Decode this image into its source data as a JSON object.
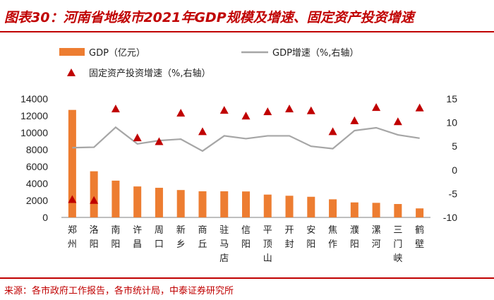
{
  "title": "图表30：河南省地级市2021年GDP规模及增速、固定资产投资增速",
  "source": "来源：各市政府工作报告，各市统计局，中泰证券研究所",
  "colors": {
    "accent": "#c00000",
    "bar": "#ed7d31",
    "line": "#a6a6a6",
    "marker": "#c00000"
  },
  "chart_data": {
    "type": "bar",
    "categories": [
      "郑州",
      "洛阳",
      "南阳",
      "许昌",
      "周口",
      "新乡",
      "商丘",
      "驻马店",
      "信阳",
      "平顶山",
      "开封",
      "安阳",
      "焦作",
      "濮阳",
      "漯河",
      "三门峡",
      "鹤壁"
    ],
    "series": [
      {
        "name": "GDP（亿元）",
        "type": "bar",
        "axis": "left",
        "values": [
          12691,
          5447,
          4342,
          3655,
          3497,
          3233,
          3083,
          3082,
          3064,
          2694,
          2557,
          2436,
          2137,
          1771,
          1721,
          1583,
          1064
        ]
      },
      {
        "name": "GDP增速（%,右轴）",
        "type": "line",
        "axis": "right",
        "values": [
          4.7,
          4.8,
          9.0,
          5.5,
          6.2,
          6.5,
          4.0,
          7.2,
          6.6,
          7.2,
          7.2,
          5.0,
          4.5,
          8.3,
          8.9,
          7.4,
          6.7
        ]
      },
      {
        "name": "固定资产投资增速（%,右轴）",
        "type": "scatter",
        "axis": "right",
        "values": [
          -6.2,
          -6.4,
          12.9,
          6.8,
          6.0,
          12.0,
          8.1,
          12.6,
          11.4,
          12.3,
          12.9,
          12.5,
          8.1,
          10.4,
          13.2,
          10.2,
          13.1
        ]
      }
    ],
    "ylim_left": [
      0,
      14000
    ],
    "yticks_left": [
      "14000",
      "12000",
      "10000",
      "8000",
      "6000",
      "4000",
      "2000",
      "0"
    ],
    "ylim_right": [
      -10,
      15
    ],
    "yticks_right": [
      "15",
      "10",
      "5",
      "0",
      "-5",
      "-10"
    ],
    "legend": [
      {
        "label": "GDP（亿元）",
        "kind": "bar"
      },
      {
        "label": "GDP增速（%,右轴）",
        "kind": "line"
      },
      {
        "label": "固定资产投资增速（%,右轴）",
        "kind": "marker"
      }
    ]
  }
}
